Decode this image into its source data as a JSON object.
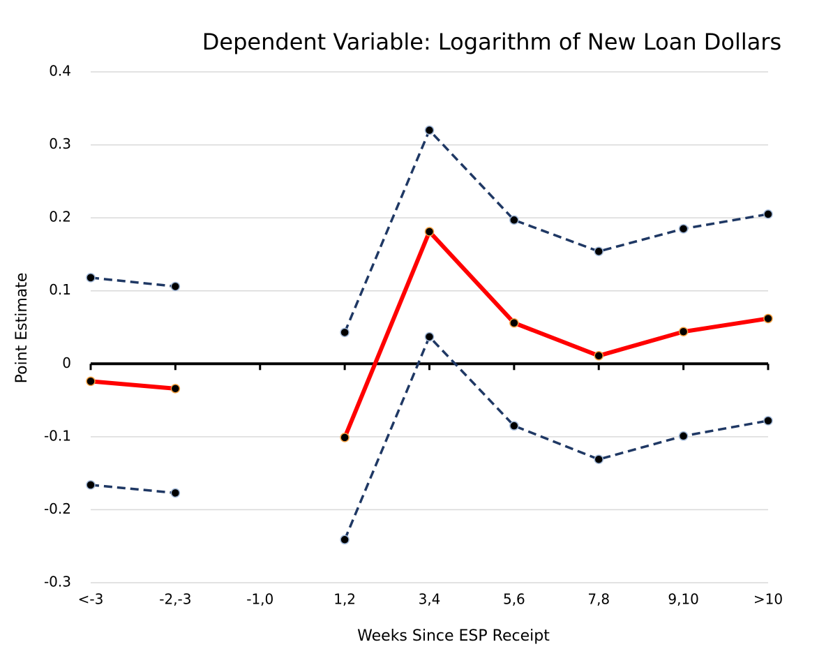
{
  "chart_data": {
    "type": "line",
    "title": "Dependent Variable: Logarithm of New Loan Dollars",
    "x_label": "Weeks Since ESP Receipt",
    "y_label": "Point Estimate",
    "categories": [
      "<-3",
      "-2,-3",
      "-1,0",
      "1,2",
      "3,4",
      "5,6",
      "7,8",
      "9,10",
      ">10"
    ],
    "series": [
      {
        "color": "#1f3864",
        "dashed": true,
        "values": [
          0.118,
          0.106,
          null,
          0.043,
          0.32,
          0.197,
          0.154,
          0.185,
          0.205
        ]
      },
      {
        "color": "#ff0000",
        "dashed": false,
        "values": [
          -0.024,
          -0.034,
          null,
          -0.101,
          0.181,
          0.056,
          0.011,
          0.044,
          0.062
        ]
      },
      {
        "color": "#1f3864",
        "dashed": true,
        "values": [
          -0.166,
          -0.177,
          null,
          -0.241,
          0.037,
          -0.085,
          -0.131,
          -0.099,
          -0.078
        ]
      }
    ],
    "ylim": [
      -0.3,
      0.4
    ],
    "yticks": [
      -0.3,
      -0.2,
      -0.1,
      0,
      0.1,
      0.2,
      0.3,
      0.4
    ],
    "grid": true
  }
}
